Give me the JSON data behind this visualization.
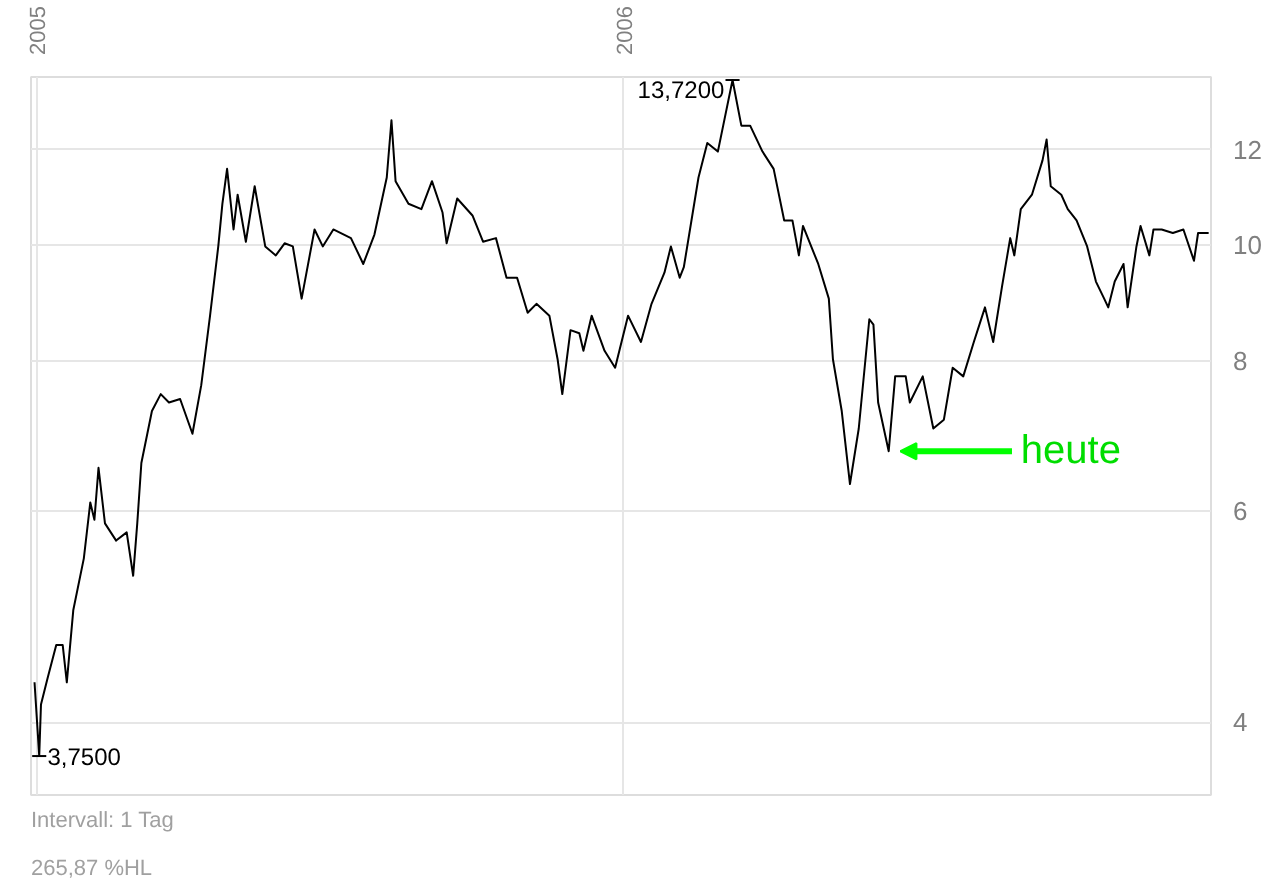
{
  "chart_data": {
    "type": "line",
    "log": "y",
    "grid": true,
    "marker": "none",
    "line_style": "solid",
    "xlim": [
      2004.99,
      2007.0
    ],
    "ylim": [
      3.48,
      13.8
    ],
    "xticks": [
      2005,
      2006
    ],
    "yticks": [
      4,
      6,
      8,
      10,
      12
    ],
    "series": [
      {
        "color": "#000000",
        "x": [
          2004.996,
          2005.004,
          2005.007,
          2005.018,
          2005.033,
          2005.044,
          2005.051,
          2005.062,
          2005.08,
          2005.091,
          2005.098,
          2005.105,
          2005.116,
          2005.135,
          2005.153,
          2005.164,
          2005.171,
          2005.178,
          2005.196,
          2005.211,
          2005.225,
          2005.244,
          2005.265,
          2005.28,
          2005.295,
          2005.309,
          2005.316,
          2005.324,
          2005.335,
          2005.342,
          2005.356,
          2005.371,
          2005.389,
          2005.407,
          2005.422,
          2005.436,
          2005.451,
          2005.473,
          2005.487,
          2005.505,
          2005.535,
          2005.556,
          2005.575,
          2005.596,
          2005.604,
          2005.611,
          2005.633,
          2005.655,
          2005.673,
          2005.691,
          2005.698,
          2005.716,
          2005.742,
          2005.76,
          2005.782,
          2005.8,
          2005.818,
          2005.836,
          2005.851,
          2005.873,
          2005.887,
          2005.895,
          2005.909,
          2005.924,
          2005.931,
          2005.945,
          2005.967,
          2005.985,
          2006.007,
          2006.029,
          2006.047,
          2006.069,
          2006.08,
          2006.095,
          2006.102,
          2006.127,
          2006.142,
          2006.16,
          2006.185,
          2006.2,
          2006.215,
          2006.236,
          2006.255,
          2006.273,
          2006.287,
          2006.298,
          2006.305,
          2006.331,
          2006.349,
          2006.356,
          2006.371,
          2006.385,
          2006.4,
          2006.418,
          2006.425,
          2006.433,
          2006.451,
          2006.462,
          2006.48,
          2006.487,
          2006.509,
          2006.527,
          2006.545,
          2006.56,
          2006.578,
          2006.596,
          2006.615,
          2006.629,
          2006.644,
          2006.658,
          2006.665,
          2006.676,
          2006.695,
          2006.713,
          2006.72,
          2006.727,
          2006.745,
          2006.756,
          2006.771,
          2006.789,
          2006.804,
          2006.818,
          2006.825,
          2006.836,
          2006.851,
          2006.858,
          2006.873,
          2006.88,
          2006.895,
          2006.902,
          2006.916,
          2006.935,
          2006.953,
          2006.971,
          2006.978,
          2006.996
        ],
        "values": [
          4.32,
          3.75,
          4.14,
          4.35,
          4.64,
          4.64,
          4.32,
          4.96,
          5.48,
          6.1,
          5.9,
          6.52,
          5.86,
          5.67,
          5.76,
          5.3,
          5.86,
          6.58,
          7.27,
          7.51,
          7.39,
          7.44,
          6.96,
          7.64,
          8.73,
          9.97,
          10.82,
          11.57,
          10.3,
          11.01,
          10.06,
          11.19,
          9.97,
          9.8,
          10.03,
          9.97,
          9.02,
          10.3,
          9.97,
          10.3,
          10.13,
          9.64,
          10.2,
          11.38,
          12.7,
          11.3,
          10.82,
          10.71,
          11.3,
          10.64,
          10.03,
          10.93,
          10.58,
          10.06,
          10.13,
          9.39,
          9.39,
          8.78,
          8.93,
          8.73,
          8.03,
          7.51,
          8.49,
          8.44,
          8.16,
          8.73,
          8.16,
          7.9,
          8.73,
          8.3,
          8.93,
          9.48,
          9.97,
          9.39,
          9.58,
          11.38,
          12.16,
          11.96,
          13.72,
          12.57,
          12.57,
          11.96,
          11.57,
          10.48,
          10.48,
          9.8,
          10.37,
          9.64,
          9.02,
          8.03,
          7.27,
          6.32,
          7.03,
          8.67,
          8.58,
          7.39,
          6.73,
          7.77,
          7.77,
          7.39,
          7.77,
          7.03,
          7.15,
          7.9,
          7.77,
          8.3,
          8.87,
          8.3,
          9.23,
          10.13,
          9.8,
          10.71,
          11.01,
          11.76,
          12.24,
          11.19,
          11.01,
          10.71,
          10.48,
          9.97,
          9.32,
          9.02,
          8.87,
          9.32,
          9.64,
          8.87,
          9.97,
          10.37,
          9.8,
          10.3,
          10.3,
          10.23,
          10.3,
          9.7,
          10.23,
          10.23
        ]
      }
    ],
    "annotations": [
      {
        "text": "13,7200",
        "x": 2006.185,
        "y": 13.72
      },
      {
        "text": "3,7500",
        "x": 2005.004,
        "y": 3.75
      },
      {
        "text": "heute",
        "x": 2006.451,
        "y": 6.73
      },
      "265,87 %HL",
      "Intervall: 1 Tag"
    ]
  }
}
